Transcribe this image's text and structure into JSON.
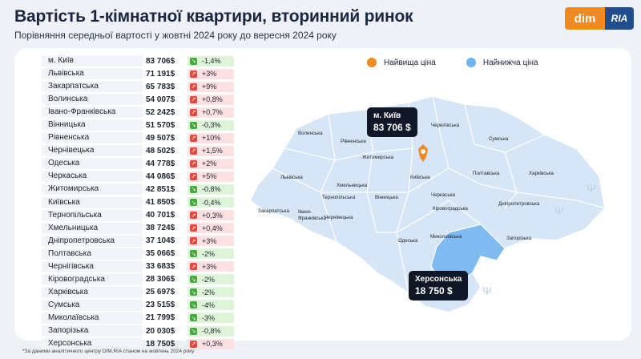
{
  "header": {
    "title": "Вартість 1-кімнатної квартири, вторинний ринок",
    "subtitle": "Порівняння середньої вартості у жовтні 2024 року до вересня 2024 року"
  },
  "logo": {
    "dim": "dim",
    "ria": "RIA"
  },
  "legend": {
    "highest": "Найвища ціна",
    "lowest": "Найнижча ціна",
    "highest_color": "#f08a24",
    "lowest_color": "#6fb3ee"
  },
  "colors": {
    "map_fill": "#d6e6f7",
    "highlight_low": "#7fbaf0",
    "highlight_high": "#f08a24"
  },
  "chart_data": {
    "type": "table",
    "columns": [
      "region",
      "price_usd",
      "change"
    ],
    "rows": [
      {
        "region": "м. Київ",
        "price": "83 706$",
        "change": "-1,4%",
        "dir": "down"
      },
      {
        "region": "Львівська",
        "price": "71 191$",
        "change": "+3%",
        "dir": "up"
      },
      {
        "region": "Закарпатська",
        "price": "65 783$",
        "change": "+9%",
        "dir": "up"
      },
      {
        "region": "Волинська",
        "price": "54 007$",
        "change": "+0,8%",
        "dir": "up"
      },
      {
        "region": "Івано-Франківська",
        "price": "52 242$",
        "change": "+0,7%",
        "dir": "up"
      },
      {
        "region": "Вінницька",
        "price": "51 570$",
        "change": "-0,3%",
        "dir": "down"
      },
      {
        "region": "Рівненська",
        "price": "49 507$",
        "change": "+10%",
        "dir": "up"
      },
      {
        "region": "Чернівецька",
        "price": "48 502$",
        "change": "+1,5%",
        "dir": "up"
      },
      {
        "region": "Одеська",
        "price": "44 778$",
        "change": "+2%",
        "dir": "up"
      },
      {
        "region": "Черкаська",
        "price": "44 086$",
        "change": "+5%",
        "dir": "up"
      },
      {
        "region": "Житомирська",
        "price": "42 851$",
        "change": "-0,8%",
        "dir": "down"
      },
      {
        "region": "Київська",
        "price": "41 850$",
        "change": "-0,4%",
        "dir": "down"
      },
      {
        "region": "Тернопільська",
        "price": "40 701$",
        "change": "+0,3%",
        "dir": "up"
      },
      {
        "region": "Хмельницька",
        "price": "38 724$",
        "change": "+0,4%",
        "dir": "up"
      },
      {
        "region": "Дніпропетровська",
        "price": "37 104$",
        "change": "+3%",
        "dir": "up"
      },
      {
        "region": "Полтавська",
        "price": "35 066$",
        "change": "-2%",
        "dir": "down"
      },
      {
        "region": "Чернігівська",
        "price": "33 683$",
        "change": "+3%",
        "dir": "up"
      },
      {
        "region": "Кіровоградська",
        "price": "28 306$",
        "change": "-2%",
        "dir": "down"
      },
      {
        "region": "Харківська",
        "price": "25 697$",
        "change": "-2%",
        "dir": "down"
      },
      {
        "region": "Сумська",
        "price": "23 515$",
        "change": "-4%",
        "dir": "down"
      },
      {
        "region": "Миколаївська",
        "price": "21 799$",
        "change": "-3%",
        "dir": "down"
      },
      {
        "region": "Запорізька",
        "price": "20 030$",
        "change": "-0,8%",
        "dir": "down"
      },
      {
        "region": "Херсонська",
        "price": "18 750$",
        "change": "+0,3%",
        "dir": "up"
      }
    ]
  },
  "map": {
    "labels": [
      {
        "name": "Волинська"
      },
      {
        "name": "Рівненська"
      },
      {
        "name": "Житомирська"
      },
      {
        "name": "Чернігівська"
      },
      {
        "name": "Сумська"
      },
      {
        "name": "Львівська"
      },
      {
        "name": "Київська"
      },
      {
        "name": "Полтавська"
      },
      {
        "name": "Харківська"
      },
      {
        "name": "Хмельницька"
      },
      {
        "name": "Тернопільська"
      },
      {
        "name": "Вінницька"
      },
      {
        "name": "Черкаська"
      },
      {
        "name": "Івано-Франківська"
      },
      {
        "name": "Закарпатська"
      },
      {
        "name": "Чернівецька"
      },
      {
        "name": "Кіровоградська"
      },
      {
        "name": "Дніпропетровська"
      },
      {
        "name": "Одеська"
      },
      {
        "name": "Миколаївська"
      },
      {
        "name": "Запорізька"
      }
    ],
    "callout_high": {
      "name": "м. Київ",
      "price": "83 706 $"
    },
    "callout_low": {
      "name": "Херсонська",
      "price": "18 750 $"
    }
  },
  "footnote": "*За даними аналітичного центру DIM.RIA станом на жовтень 2024 року"
}
